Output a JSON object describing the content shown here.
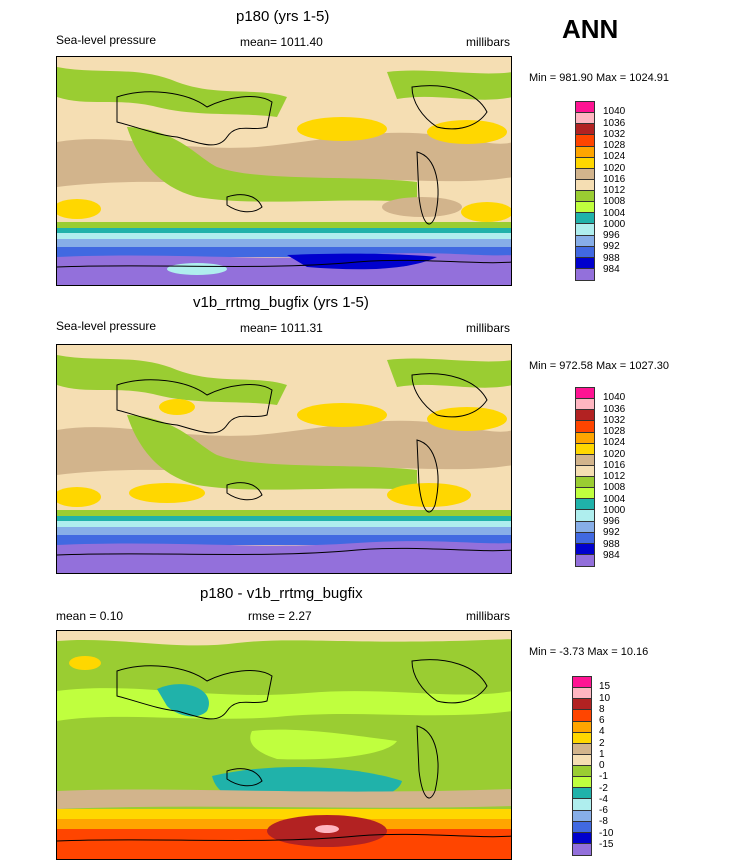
{
  "season": "ANN",
  "panels": [
    {
      "title": "p180 (yrs 1-5)",
      "left_label": "Sea-level pressure",
      "center_label": "mean= 1011.40",
      "units": "millibars",
      "minmax": "Min = 981.90 Max = 1024.91",
      "colorbar": {
        "colors": [
          "#ff1493",
          "#ffb6c1",
          "#b22222",
          "#ff4500",
          "#ffa500",
          "#ffd700",
          "#d2b48c",
          "#f5deb3",
          "#9acd32",
          "#c0ff3e",
          "#20b2aa",
          "#afeeee",
          "#87aee8",
          "#4169e1",
          "#0000cd",
          "#9370db"
        ],
        "labels": [
          "1040",
          "1036",
          "1032",
          "1028",
          "1024",
          "1020",
          "1016",
          "1012",
          "1008",
          "1004",
          "1000",
          "996",
          "992",
          "988",
          "984"
        ]
      }
    },
    {
      "title": "v1b_rrtmg_bugfix (yrs 1-5)",
      "left_label": "Sea-level pressure",
      "center_label": "mean= 1011.31",
      "units": "millibars",
      "minmax": "Min = 972.58 Max = 1027.30",
      "colorbar": {
        "colors": [
          "#ff1493",
          "#ffb6c1",
          "#b22222",
          "#ff4500",
          "#ffa500",
          "#ffd700",
          "#d2b48c",
          "#f5deb3",
          "#9acd32",
          "#c0ff3e",
          "#20b2aa",
          "#afeeee",
          "#87aee8",
          "#4169e1",
          "#0000cd",
          "#9370db"
        ],
        "labels": [
          "1040",
          "1036",
          "1032",
          "1028",
          "1024",
          "1020",
          "1016",
          "1012",
          "1008",
          "1004",
          "1000",
          "996",
          "992",
          "988",
          "984"
        ]
      }
    },
    {
      "title": "p180 - v1b_rrtmg_bugfix",
      "left_label": "mean =   0.10",
      "center_label": "rmse =   2.27",
      "units": "millibars",
      "minmax": "Min =  -3.73 Max =  10.16",
      "colorbar": {
        "colors": [
          "#ff1493",
          "#ffb6c1",
          "#b22222",
          "#ff4500",
          "#ffa500",
          "#ffd700",
          "#d2b48c",
          "#f5deb3",
          "#9acd32",
          "#c0ff3e",
          "#20b2aa",
          "#afeeee",
          "#87aee8",
          "#4169e1",
          "#0000cd",
          "#9370db"
        ],
        "labels": [
          "15",
          "10",
          "8",
          "6",
          "4",
          "2",
          "1",
          "0",
          "-1",
          "-2",
          "-4",
          "-6",
          "-8",
          "-10",
          "-15"
        ]
      }
    }
  ]
}
